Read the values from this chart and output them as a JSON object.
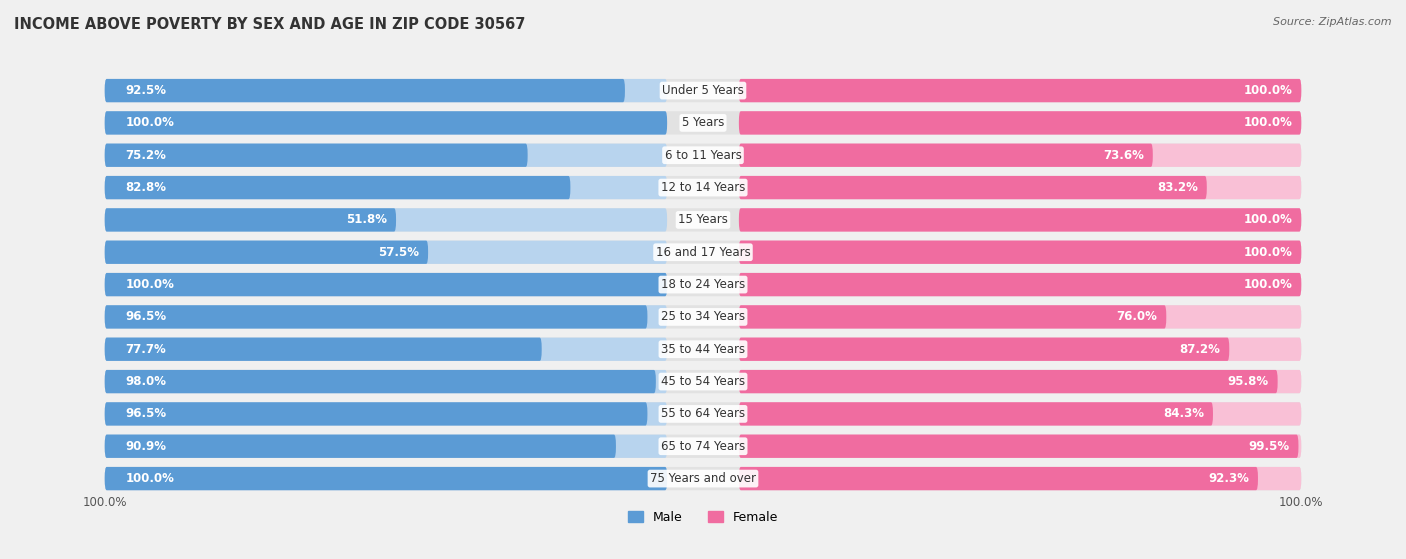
{
  "title": "INCOME ABOVE POVERTY BY SEX AND AGE IN ZIP CODE 30567",
  "source": "Source: ZipAtlas.com",
  "categories": [
    "Under 5 Years",
    "5 Years",
    "6 to 11 Years",
    "12 to 14 Years",
    "15 Years",
    "16 and 17 Years",
    "18 to 24 Years",
    "25 to 34 Years",
    "35 to 44 Years",
    "45 to 54 Years",
    "55 to 64 Years",
    "65 to 74 Years",
    "75 Years and over"
  ],
  "male_values": [
    92.5,
    100.0,
    75.2,
    82.8,
    51.8,
    57.5,
    100.0,
    96.5,
    77.7,
    98.0,
    96.5,
    90.9,
    100.0
  ],
  "female_values": [
    100.0,
    100.0,
    73.6,
    83.2,
    100.0,
    100.0,
    100.0,
    76.0,
    87.2,
    95.8,
    84.3,
    99.5,
    92.3
  ],
  "male_color": "#5b9bd5",
  "female_color": "#f06ca0",
  "male_light_color": "#b8d4ee",
  "female_light_color": "#f9c0d6",
  "row_bg_color": "#e8e8e8",
  "background_color": "#f0f0f0",
  "title_fontsize": 10.5,
  "label_fontsize": 8.5,
  "value_fontsize": 8.5,
  "legend_fontsize": 9,
  "source_fontsize": 8
}
